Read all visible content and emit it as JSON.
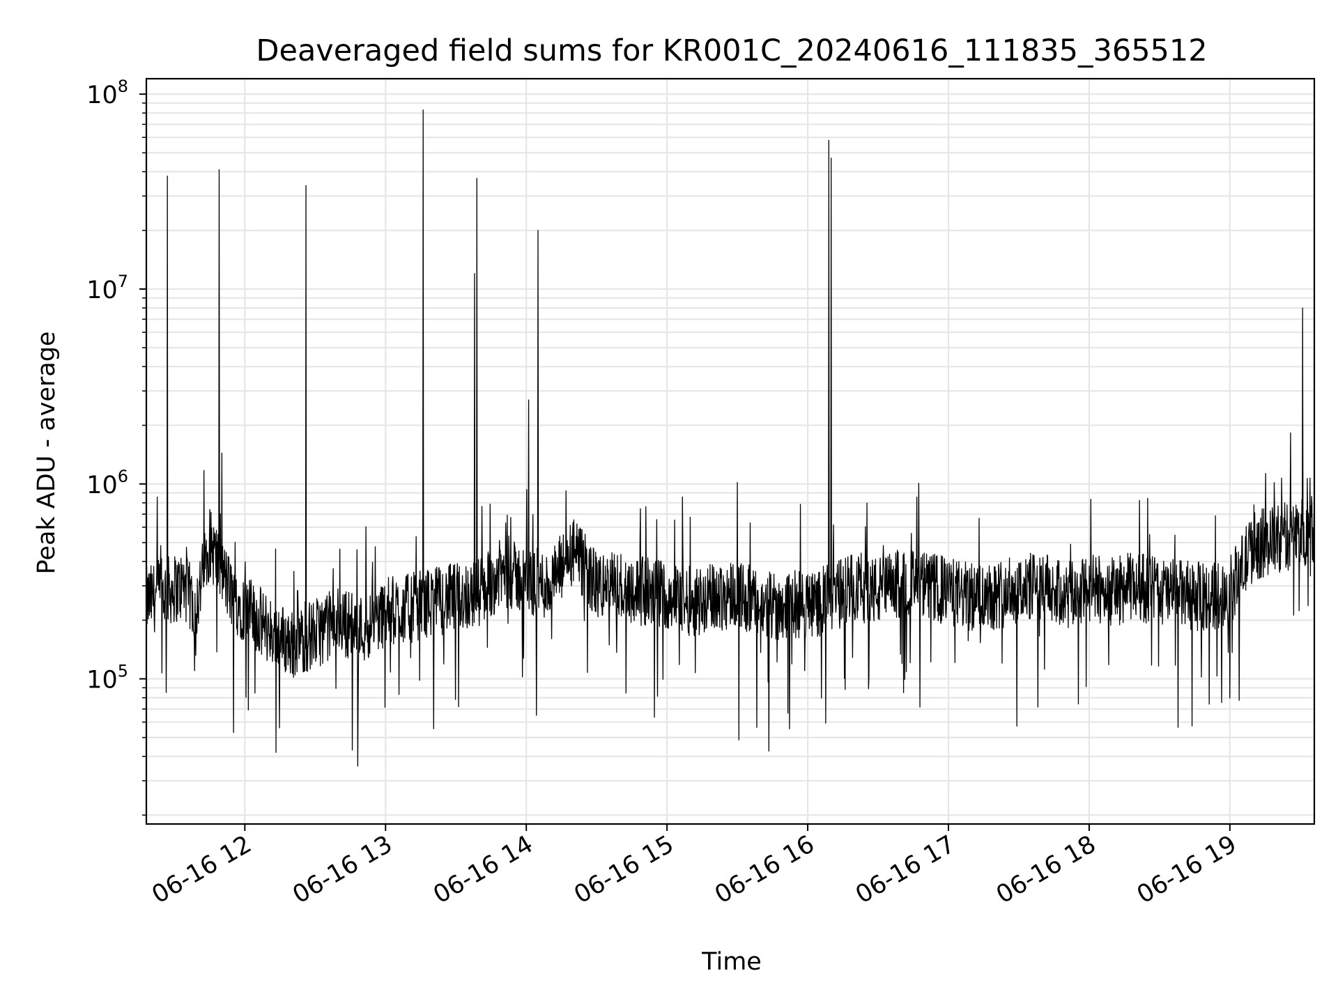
{
  "chart_data": {
    "type": "line",
    "title": "Deaveraged field sums for KR001C_20240616_111835_365512",
    "xlabel": "Time",
    "ylabel": "Peak ADU - average",
    "yscale": "log",
    "ylim": [
      18000,
      120000000
    ],
    "xlim": [
      "2024-06-16 11:18",
      "2024-06-16 19:36"
    ],
    "grid": true,
    "line_color": "#000000",
    "grid_color": "#e6e6e6",
    "x_ticks": [
      {
        "value": "2024-06-16 12:00",
        "label": "06-16 12"
      },
      {
        "value": "2024-06-16 13:00",
        "label": "06-16 13"
      },
      {
        "value": "2024-06-16 14:00",
        "label": "06-16 14"
      },
      {
        "value": "2024-06-16 15:00",
        "label": "06-16 15"
      },
      {
        "value": "2024-06-16 16:00",
        "label": "06-16 16"
      },
      {
        "value": "2024-06-16 17:00",
        "label": "06-16 17"
      },
      {
        "value": "2024-06-16 18:00",
        "label": "06-16 18"
      },
      {
        "value": "2024-06-16 19:00",
        "label": "06-16 19"
      }
    ],
    "y_ticks": [
      {
        "value": 100000,
        "base": "10",
        "exp": "5"
      },
      {
        "value": 1000000,
        "base": "10",
        "exp": "6"
      },
      {
        "value": 10000000,
        "base": "10",
        "exp": "7"
      },
      {
        "value": 100000000,
        "base": "10",
        "exp": "8"
      }
    ],
    "series": [
      {
        "x": [
          "2024-06-16 11:18",
          "2024-06-16 11:26",
          "2024-06-16 11:34",
          "2024-06-16 11:39",
          "2024-06-16 11:45",
          "2024-06-16 11:55",
          "2024-06-16 12:02",
          "2024-06-16 12:10",
          "2024-06-16 12:20",
          "2024-06-16 12:30",
          "2024-06-16 12:40",
          "2024-06-16 12:50",
          "2024-06-16 13:00",
          "2024-06-16 13:10",
          "2024-06-16 13:20",
          "2024-06-16 13:30",
          "2024-06-16 13:40",
          "2024-06-16 13:50",
          "2024-06-16 14:00",
          "2024-06-16 14:10",
          "2024-06-16 14:20",
          "2024-06-16 14:30",
          "2024-06-16 14:40",
          "2024-06-16 14:50",
          "2024-06-16 15:00",
          "2024-06-16 15:10",
          "2024-06-16 15:20",
          "2024-06-16 15:30",
          "2024-06-16 15:40",
          "2024-06-16 15:50",
          "2024-06-16 16:00",
          "2024-06-16 16:10",
          "2024-06-16 16:20",
          "2024-06-16 16:30",
          "2024-06-16 16:40",
          "2024-06-16 16:50",
          "2024-06-16 17:00",
          "2024-06-16 17:10",
          "2024-06-16 17:20",
          "2024-06-16 17:30",
          "2024-06-16 17:40",
          "2024-06-16 17:50",
          "2024-06-16 18:00",
          "2024-06-16 18:10",
          "2024-06-16 18:20",
          "2024-06-16 18:30",
          "2024-06-16 18:40",
          "2024-06-16 18:50",
          "2024-06-16 19:00",
          "2024-06-16 19:10",
          "2024-06-16 19:20",
          "2024-06-16 19:30",
          "2024-06-16 19:36"
        ],
        "values": [
          250000,
          280000,
          300000,
          230000,
          500000,
          260000,
          220000,
          180000,
          150000,
          170000,
          200000,
          180000,
          220000,
          230000,
          250000,
          260000,
          280000,
          350000,
          320000,
          300000,
          450000,
          300000,
          300000,
          280000,
          270000,
          250000,
          260000,
          280000,
          230000,
          240000,
          240000,
          260000,
          300000,
          280000,
          310000,
          300000,
          280000,
          260000,
          270000,
          290000,
          300000,
          260000,
          290000,
          280000,
          300000,
          280000,
          270000,
          260000,
          280000,
          480000,
          520000,
          560000,
          600000
        ]
      }
    ],
    "spikes": [
      {
        "x": "2024-06-16 11:27",
        "y": 38000000
      },
      {
        "x": "2024-06-16 11:49",
        "y": 41000000
      },
      {
        "x": "2024-06-16 12:26",
        "y": 34000000
      },
      {
        "x": "2024-06-16 13:16",
        "y": 83000000
      },
      {
        "x": "2024-06-16 13:38",
        "y": 12000000
      },
      {
        "x": "2024-06-16 13:39",
        "y": 37000000
      },
      {
        "x": "2024-06-16 14:01",
        "y": 2700000
      },
      {
        "x": "2024-06-16 14:05",
        "y": 20000000
      },
      {
        "x": "2024-06-16 16:09",
        "y": 58000000
      },
      {
        "x": "2024-06-16 16:10",
        "y": 47000000
      },
      {
        "x": "2024-06-16 19:31",
        "y": 8000000
      }
    ]
  }
}
